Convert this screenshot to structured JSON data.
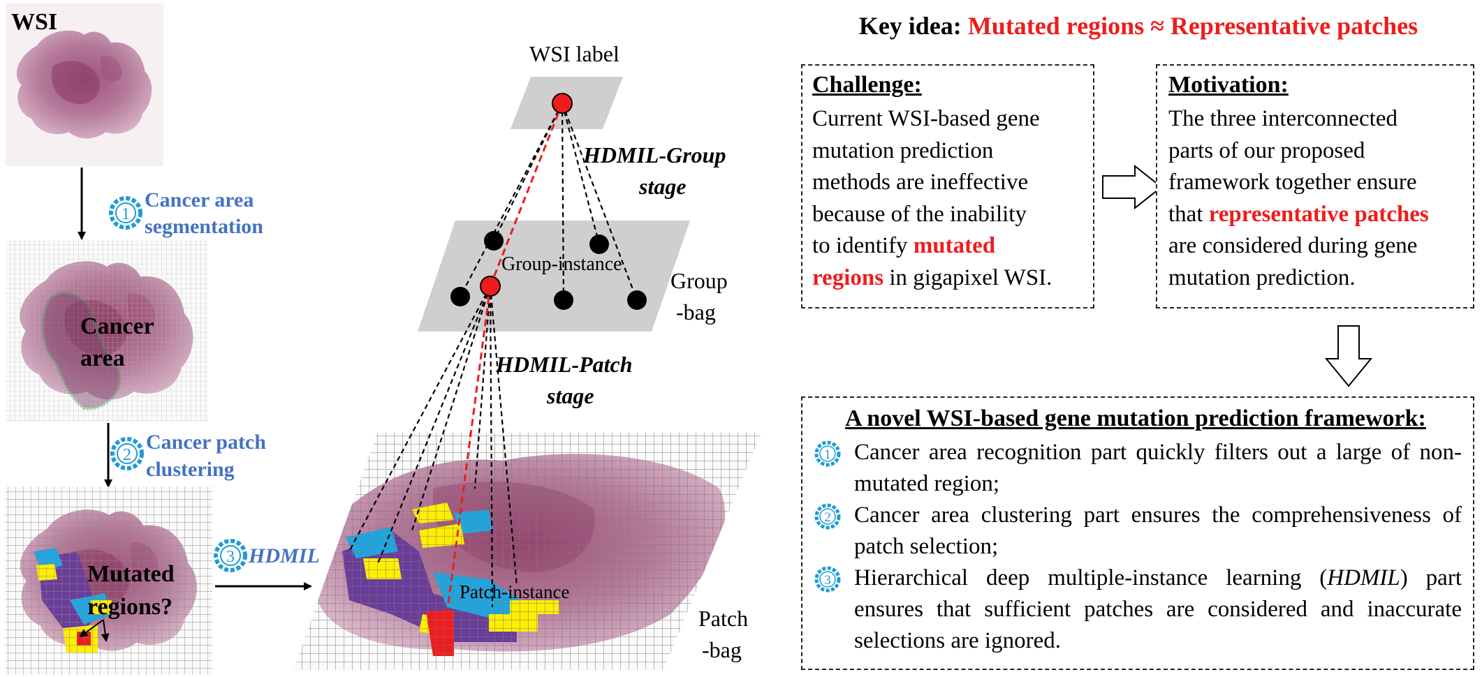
{
  "left": {
    "wsi_label": "WSI",
    "step1_num": "1",
    "step1_text": [
      "Cancer area",
      "segmentation"
    ],
    "cancer_area_label": [
      "Cancer",
      "area"
    ],
    "step2_num": "2",
    "step2_text": [
      "Cancer patch",
      "clustering"
    ],
    "mutated_label": [
      "Mutated",
      "regions?"
    ],
    "step3_num": "3",
    "step3_text": "HDMIL"
  },
  "middle": {
    "wsi_label_text": "WSI label",
    "hdmil_group_stage": [
      "HDMIL-Group",
      "stage"
    ],
    "group_instance": "Group-instance",
    "group_bag": [
      "Group",
      "-bag"
    ],
    "hdmil_patch_stage": [
      "HDMIL-Patch",
      "stage"
    ],
    "patch_instance": "Patch-instance",
    "patch_bag": [
      "Patch",
      "-bag"
    ]
  },
  "right": {
    "key_idea_prefix": "Key idea: ",
    "key_idea_highlight": "Mutated regions ≈ Representative patches",
    "challenge": {
      "title": "Challenge:",
      "lines": [
        "Current WSI-based gene",
        "mutation prediction",
        "methods are ineffective",
        "because of the inability",
        "to identify "
      ],
      "red1": "mutated",
      "red2": "regions",
      "tail": " in gigapixel WSI."
    },
    "motivation": {
      "title": "Motivation:",
      "lines": [
        "The three interconnected",
        "parts of our proposed",
        "framework together ensure"
      ],
      "pre_red": "that ",
      "red": "representative patches",
      "tail_lines": [
        "are considered during gene",
        "mutation prediction."
      ]
    },
    "novel": {
      "title": "A novel WSI-based gene mutation prediction framework:",
      "item1_num": "1",
      "item1": "Cancer area recognition part quickly filters out a large of non-mutated region;",
      "item2_num": "2",
      "item2": "Cancer area clustering part ensures the comprehensiveness of patch selection;",
      "item3_num": "3",
      "item3_pre": "Hierarchical deep multiple-instance learning (",
      "item3_italic": "HDMIL",
      "item3_post": ") part ensures that sufficient patches are considered and inaccurate selections are ignored."
    }
  },
  "colors": {
    "tissue": "#b87a9a",
    "tissue_dark": "#8e3c66",
    "purple": "#6a3d9a",
    "cyan": "#1fa6e0",
    "yellow": "#ffee00",
    "red": "#ee1c1c",
    "blue_text": "#4472c4",
    "plane_gray": "#cfcfcf"
  }
}
